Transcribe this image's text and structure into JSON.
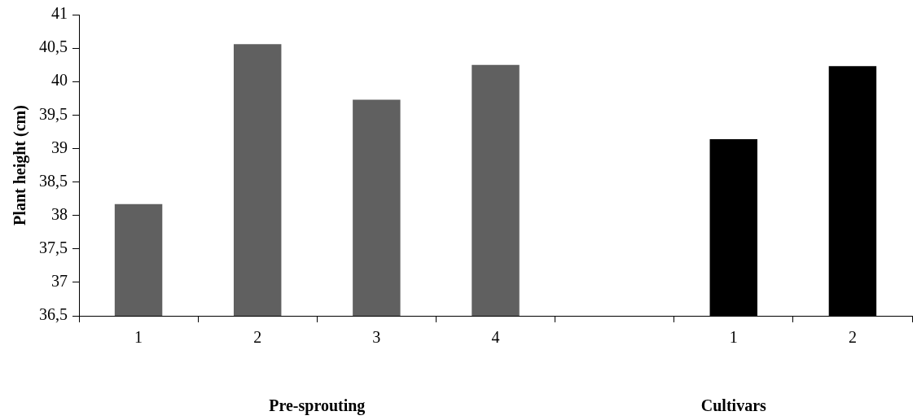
{
  "chart_data": {
    "type": "bar",
    "categories": [
      "1",
      "2",
      "3",
      "4",
      null,
      "1",
      "2"
    ],
    "series": [
      {
        "colors": [
          "#606060",
          "#606060",
          "#606060",
          "#606060",
          "#606060",
          "#000000",
          "#000000"
        ],
        "values": [
          38.17,
          40.56,
          39.73,
          40.25,
          null,
          39.14,
          40.23
        ]
      }
    ],
    "ylabel": "Plant height (cm)",
    "ylim": [
      36.5,
      41
    ],
    "yticks": [
      {
        "value": 36.5,
        "label": "36,5"
      },
      37,
      {
        "value": 37.5,
        "label": "37,5"
      },
      38,
      {
        "value": 38.5,
        "label": "38,5"
      },
      39,
      {
        "value": 39.5,
        "label": "39,5"
      },
      40,
      {
        "value": 40.5,
        "label": "40,5"
      },
      41
    ],
    "annotations": [
      "Pre-sprouting",
      "Cultivars"
    ],
    "grid": false,
    "legend": false
  }
}
